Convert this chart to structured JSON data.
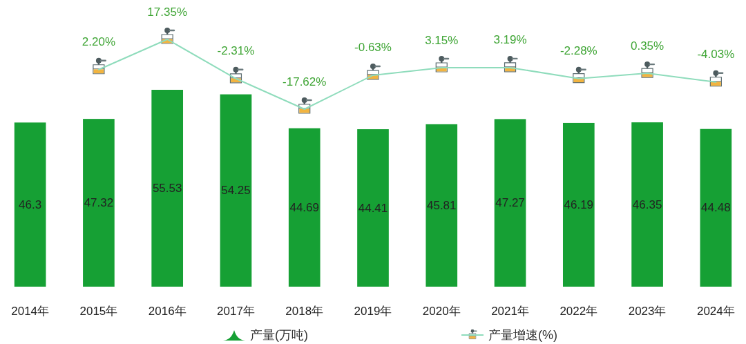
{
  "chart_data": {
    "type": "bar",
    "categories": [
      "2014年",
      "2015年",
      "2016年",
      "2017年",
      "2018年",
      "2019年",
      "2020年",
      "2021年",
      "2022年",
      "2023年",
      "2024年"
    ],
    "series": [
      {
        "name": "产量(万吨)",
        "color": "#16a034",
        "values": [
          46.3,
          47.32,
          55.53,
          54.25,
          44.69,
          44.41,
          45.81,
          47.27,
          46.19,
          46.35,
          44.48
        ],
        "value_labels": [
          "46.3",
          "47.32",
          "55.53",
          "54.25",
          "44.69",
          "44.41",
          "45.81",
          "47.27",
          "46.19",
          "46.35",
          "44.48"
        ]
      },
      {
        "name": "产量增速(%)",
        "type": "line",
        "axis": "y2",
        "color": "#8fdcbc",
        "values": [
          null,
          2.2,
          17.35,
          -2.31,
          -17.62,
          -0.63,
          3.15,
          3.19,
          -2.28,
          0.35,
          -4.03
        ],
        "value_labels": [
          null,
          "2.20%",
          "17.35%",
          "-2.31%",
          "-17.62%",
          "-0.63%",
          "3.15%",
          "3.19%",
          "-2.28%",
          "0.35%",
          "-4.03%"
        ]
      }
    ],
    "marker": "none",
    "tick_labels": "x",
    "legend": "bottom"
  }
}
